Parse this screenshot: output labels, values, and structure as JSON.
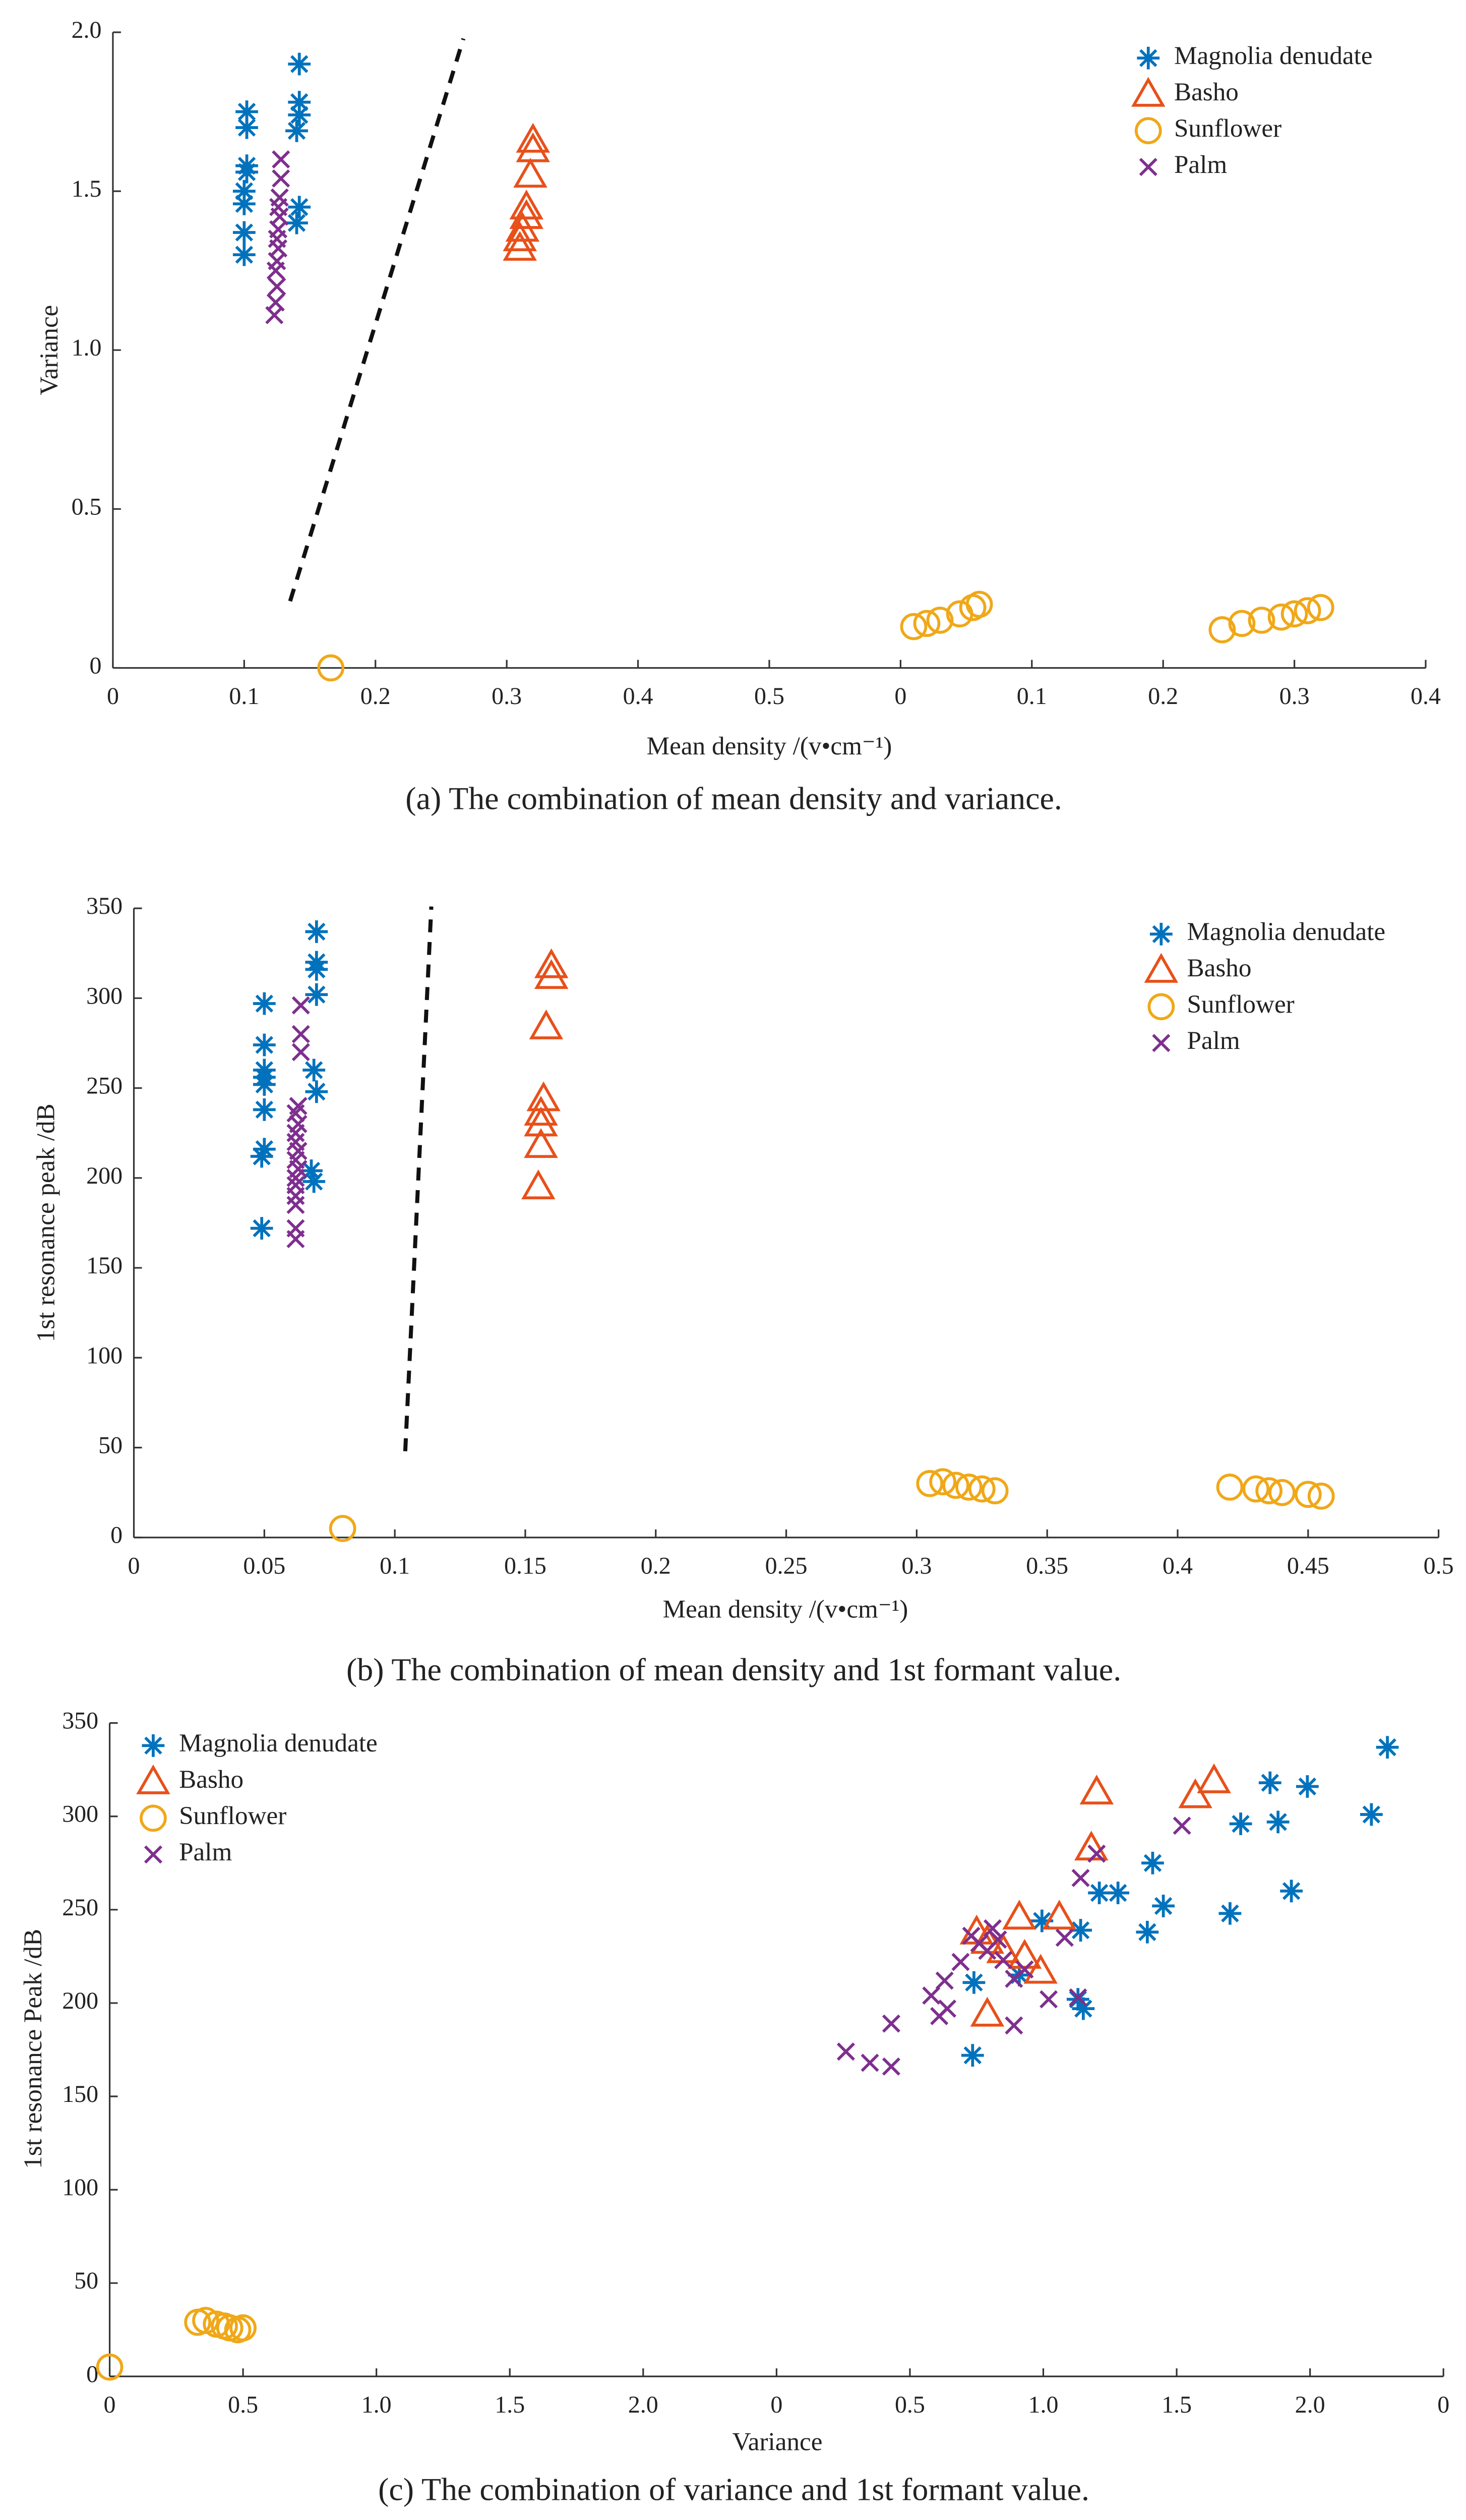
{
  "chart_data": [
    {
      "type": "scatter",
      "caption": "(a) The combination of mean density and variance.",
      "xlabel": "Mean density /(v•cm⁻¹)",
      "ylabel": "Variance",
      "xlim": [
        0,
        1.0
      ],
      "ylim": [
        0,
        2.0
      ],
      "xticks": [
        0,
        0.1,
        0.2,
        0.3,
        0.4,
        0.5,
        {
          "value": 0.6,
          "label": "0"
        },
        {
          "value": 0.7,
          "label": "0.1"
        },
        {
          "value": 0.8,
          "label": "0.2"
        },
        {
          "value": 0.9,
          "label": "0.3"
        },
        {
          "value": 1.0,
          "label": "0.4"
        }
      ],
      "yticks": [
        0,
        0.5,
        {
          "value": 1,
          "label": "1.0"
        },
        1.5,
        {
          "value": 2,
          "label": "2.0"
        }
      ],
      "legend": "upper right",
      "series": [
        {
          "name": "Magnolia denudate",
          "color": "#0072bd",
          "marker": "asterisk",
          "x": [
            0.1,
            0.1,
            0.1,
            0.1,
            0.102,
            0.102,
            0.102,
            0.102,
            0.14,
            0.142,
            0.14,
            0.142,
            0.142,
            0.142
          ],
          "y": [
            1.3,
            1.37,
            1.46,
            1.5,
            1.56,
            1.58,
            1.7,
            1.75,
            1.4,
            1.45,
            1.69,
            1.74,
            1.78,
            1.9
          ]
        },
        {
          "name": "Basho",
          "color": "#e8501a",
          "marker": "triangle",
          "x": [
            0.31,
            0.31,
            0.312,
            0.315,
            0.315,
            0.318,
            0.32,
            0.32
          ],
          "y": [
            1.32,
            1.35,
            1.38,
            1.42,
            1.45,
            1.55,
            1.63,
            1.66
          ]
        },
        {
          "name": "Sunflower",
          "color": "#f0a818",
          "marker": "circle",
          "x": [
            0.166,
            0.61,
            0.62,
            0.63,
            0.645,
            0.655,
            0.66,
            0.845,
            0.86,
            0.875,
            0.89,
            0.9,
            0.91,
            0.92
          ],
          "y": [
            0,
            0.13,
            0.14,
            0.15,
            0.17,
            0.19,
            0.2,
            0.12,
            0.14,
            0.15,
            0.16,
            0.17,
            0.18,
            0.19
          ]
        },
        {
          "name": "Palm",
          "color": "#7e2f8e",
          "marker": "x",
          "x": [
            0.123,
            0.124,
            0.125,
            0.124,
            0.125,
            0.126,
            0.125,
            0.126,
            0.127,
            0.126,
            0.127,
            0.128,
            0.128
          ],
          "y": [
            1.11,
            1.15,
            1.2,
            1.25,
            1.28,
            1.32,
            1.35,
            1.38,
            1.42,
            1.45,
            1.48,
            1.54,
            1.6
          ]
        }
      ],
      "lines": [
        {
          "x": [
            0.135,
            0.267
          ],
          "y": [
            0.21,
            1.98
          ],
          "style": "dashed"
        }
      ]
    },
    {
      "type": "scatter",
      "caption": "(b) The combination of mean density and 1st formant value.",
      "xlabel": "Mean density /(v•cm⁻¹)",
      "ylabel": "1st resonance peak /dB",
      "xlim": [
        0,
        0.5
      ],
      "ylim": [
        0,
        350
      ],
      "xticks": [
        0,
        0.05,
        0.1,
        0.15,
        0.2,
        0.25,
        0.3,
        0.35,
        0.4,
        0.45,
        0.5
      ],
      "yticks": [
        0,
        50,
        100,
        150,
        200,
        250,
        300,
        350
      ],
      "legend": "upper right",
      "series": [
        {
          "name": "Magnolia denudate",
          "color": "#0072bd",
          "marker": "asterisk",
          "x": [
            0.049,
            0.049,
            0.05,
            0.05,
            0.05,
            0.05,
            0.05,
            0.05,
            0.05,
            0.069,
            0.068,
            0.07,
            0.069,
            0.07,
            0.07,
            0.07,
            0.07
          ],
          "y": [
            172,
            212,
            216,
            238,
            252,
            256,
            260,
            274,
            297,
            198,
            204,
            248,
            260,
            302,
            316,
            320,
            337
          ]
        },
        {
          "name": "Basho",
          "color": "#e8501a",
          "marker": "triangle",
          "x": [
            0.155,
            0.156,
            0.156,
            0.156,
            0.157,
            0.158,
            0.16,
            0.16
          ],
          "y": [
            195,
            218,
            230,
            236,
            244,
            284,
            312,
            318
          ]
        },
        {
          "name": "Sunflower",
          "color": "#f0a818",
          "marker": "circle",
          "x": [
            0.08,
            0.305,
            0.31,
            0.315,
            0.32,
            0.325,
            0.33,
            0.42,
            0.43,
            0.435,
            0.44,
            0.45,
            0.455
          ],
          "y": [
            5,
            30,
            31,
            29,
            28,
            27,
            26,
            28,
            27,
            26,
            25,
            24,
            23
          ]
        },
        {
          "name": "Palm",
          "color": "#7e2f8e",
          "marker": "x",
          "x": [
            0.062,
            0.062,
            0.062,
            0.062,
            0.062,
            0.062,
            0.063,
            0.062,
            0.063,
            0.062,
            0.062,
            0.063,
            0.062,
            0.063,
            0.064,
            0.064,
            0.064
          ],
          "y": [
            166,
            172,
            185,
            190,
            196,
            200,
            205,
            210,
            215,
            220,
            225,
            230,
            236,
            240,
            270,
            280,
            296
          ]
        }
      ],
      "lines": [
        {
          "x": [
            0.104,
            0.114
          ],
          "y": [
            48,
            351
          ],
          "style": "dashed"
        }
      ]
    },
    {
      "type": "scatter",
      "caption": "(c) The combination of variance and 1st formant value.",
      "xlabel": "Variance",
      "ylabel": "1st resonance Peak /dB",
      "xlim": [
        0,
        5
      ],
      "ylim": [
        0,
        350
      ],
      "xticks": [
        0,
        0.5,
        {
          "value": 1,
          "label": "1.0"
        },
        1.5,
        {
          "value": 2,
          "label": "2.0"
        },
        {
          "value": 2.5,
          "label": "0"
        },
        {
          "value": 3,
          "label": "0.5"
        },
        {
          "value": 3.5,
          "label": "1.0"
        },
        {
          "value": 4,
          "label": "1.5"
        },
        {
          "value": 4.5,
          "label": "2.0"
        },
        {
          "value": 5,
          "label": "0"
        }
      ],
      "yticks": [
        0,
        50,
        100,
        150,
        200,
        250,
        300,
        350
      ],
      "legend": "upper left",
      "series": [
        {
          "name": "Magnolia denudate",
          "color": "#0072bd",
          "marker": "asterisk",
          "x": [
            3.235,
            3.24,
            3.41,
            3.495,
            3.64,
            3.65,
            3.63,
            3.71,
            3.78,
            3.89,
            3.91,
            3.95,
            4.2,
            4.24,
            4.35,
            4.38,
            4.43,
            4.49,
            4.73,
            4.79
          ],
          "y": [
            172,
            211,
            215,
            244,
            239,
            197,
            202,
            259,
            259,
            238,
            275,
            252,
            248,
            296,
            318,
            297,
            260,
            316,
            301,
            337
          ]
        },
        {
          "name": "Basho",
          "color": "#e8501a",
          "marker": "triangle",
          "x": [
            3.29,
            3.25,
            3.29,
            3.35,
            3.41,
            3.43,
            3.49,
            3.56,
            3.68,
            3.7,
            4.07,
            4.14
          ],
          "y": [
            194,
            238,
            233,
            228,
            246,
            225,
            217,
            246,
            283,
            313,
            311,
            319
          ]
        },
        {
          "name": "Sunflower",
          "color": "#f0a818",
          "marker": "circle",
          "x": [
            0,
            0.33,
            0.36,
            0.4,
            0.43,
            0.45,
            0.48,
            0.5
          ],
          "y": [
            5,
            29,
            30,
            28,
            27,
            26,
            25,
            26
          ]
        },
        {
          "name": "Palm",
          "color": "#7e2f8e",
          "marker": "x",
          "x": [
            2.76,
            2.85,
            2.93,
            2.93,
            3.08,
            3.11,
            3.14,
            3.13,
            3.19,
            3.23,
            3.26,
            3.29,
            3.33,
            3.35,
            3.39,
            3.39,
            3.43,
            3.52,
            3.58,
            3.63,
            3.64,
            3.7,
            4.02,
            3.31
          ],
          "y": [
            174,
            168,
            166,
            189,
            204,
            193,
            197,
            212,
            222,
            236,
            232,
            228,
            234,
            223,
            213,
            188,
            218,
            202,
            235,
            203,
            267,
            280,
            295,
            240
          ]
        }
      ],
      "lines": []
    }
  ]
}
